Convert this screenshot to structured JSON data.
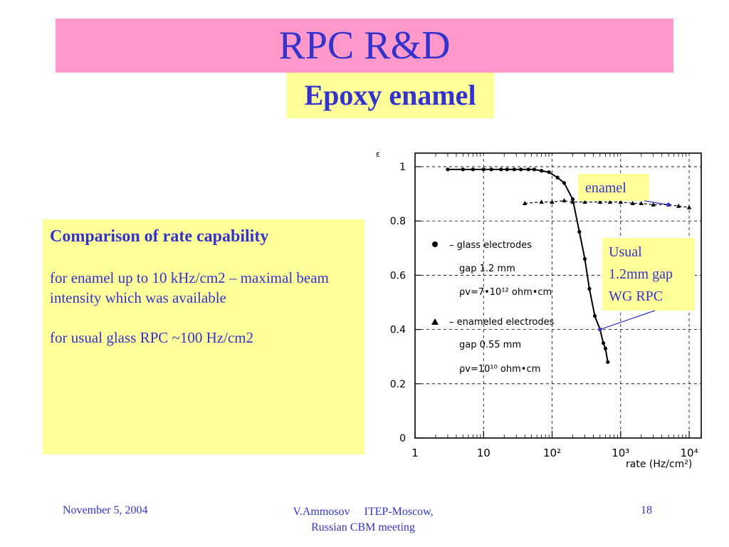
{
  "slide": {
    "title": "RPC R&D",
    "subtitle": "Epoxy enamel",
    "textbox": {
      "heading": "Comparison of rate capability",
      "para1": "for enamel  up to 10 kHz/cm2 – maximal beam intensity which was available",
      "para2": "for usual glass RPC ~100 Hz/cm2"
    },
    "footer": {
      "date": "November 5, 2004",
      "author": "V.Ammosov",
      "org": "ITEP-Moscow,",
      "meeting": "Russian CBM meeting",
      "page": "18"
    }
  },
  "chart_data": {
    "type": "scatter",
    "xscale": "log",
    "xlim": [
      1,
      15000
    ],
    "ylim": [
      0,
      1.05
    ],
    "xlabel": "rate (Hz/cm²)",
    "ylabel": "ε",
    "xticks": [
      "1",
      "10",
      "10²",
      "10³",
      "10⁴"
    ],
    "xtick_values": [
      1,
      10,
      100,
      1000,
      10000
    ],
    "yticks": [
      0,
      0.2,
      0.4,
      0.6,
      0.8,
      1
    ],
    "ytick_labels": [
      "0",
      "0.2",
      "0.4",
      "0.6",
      "0.8",
      "1"
    ],
    "grid": true,
    "legend": [
      {
        "marker": "circle",
        "label": "– glass electrodes",
        "params": [
          "gap 1.2 mm",
          "ρv=7•10¹² ohm•cm"
        ]
      },
      {
        "marker": "triangle",
        "label": "– enameled electrodes",
        "params": [
          "gap 0.55 mm",
          "ρv=10¹⁰ ohm•cm"
        ]
      }
    ],
    "series": [
      {
        "marker": "circle",
        "x": [
          3,
          5,
          7,
          10,
          13,
          18,
          22,
          28,
          35,
          45,
          55,
          70,
          90,
          120,
          150,
          200,
          250,
          300,
          350,
          420,
          500,
          560,
          600,
          650
        ],
        "y": [
          0.99,
          0.99,
          0.99,
          0.99,
          0.99,
          0.99,
          0.99,
          0.99,
          0.99,
          0.99,
          0.99,
          0.985,
          0.98,
          0.96,
          0.94,
          0.88,
          0.76,
          0.66,
          0.55,
          0.45,
          0.4,
          0.35,
          0.33,
          0.28
        ]
      },
      {
        "marker": "triangle",
        "x": [
          40,
          70,
          100,
          150,
          200,
          300,
          500,
          700,
          1000,
          1500,
          2000,
          3000,
          5000,
          7000,
          10000
        ],
        "y": [
          0.865,
          0.87,
          0.87,
          0.875,
          0.87,
          0.87,
          0.87,
          0.87,
          0.87,
          0.865,
          0.865,
          0.86,
          0.86,
          0.855,
          0.85
        ]
      }
    ],
    "annotations": [
      {
        "text": "enamel",
        "target": {
          "x": 5000,
          "y": 0.86
        }
      },
      {
        "text": "Usual 1.2mm gap WG RPC",
        "lines": [
          "Usual",
          "1.2mm gap",
          "WG RPC"
        ],
        "target": {
          "x": 500,
          "y": 0.4
        }
      }
    ]
  }
}
